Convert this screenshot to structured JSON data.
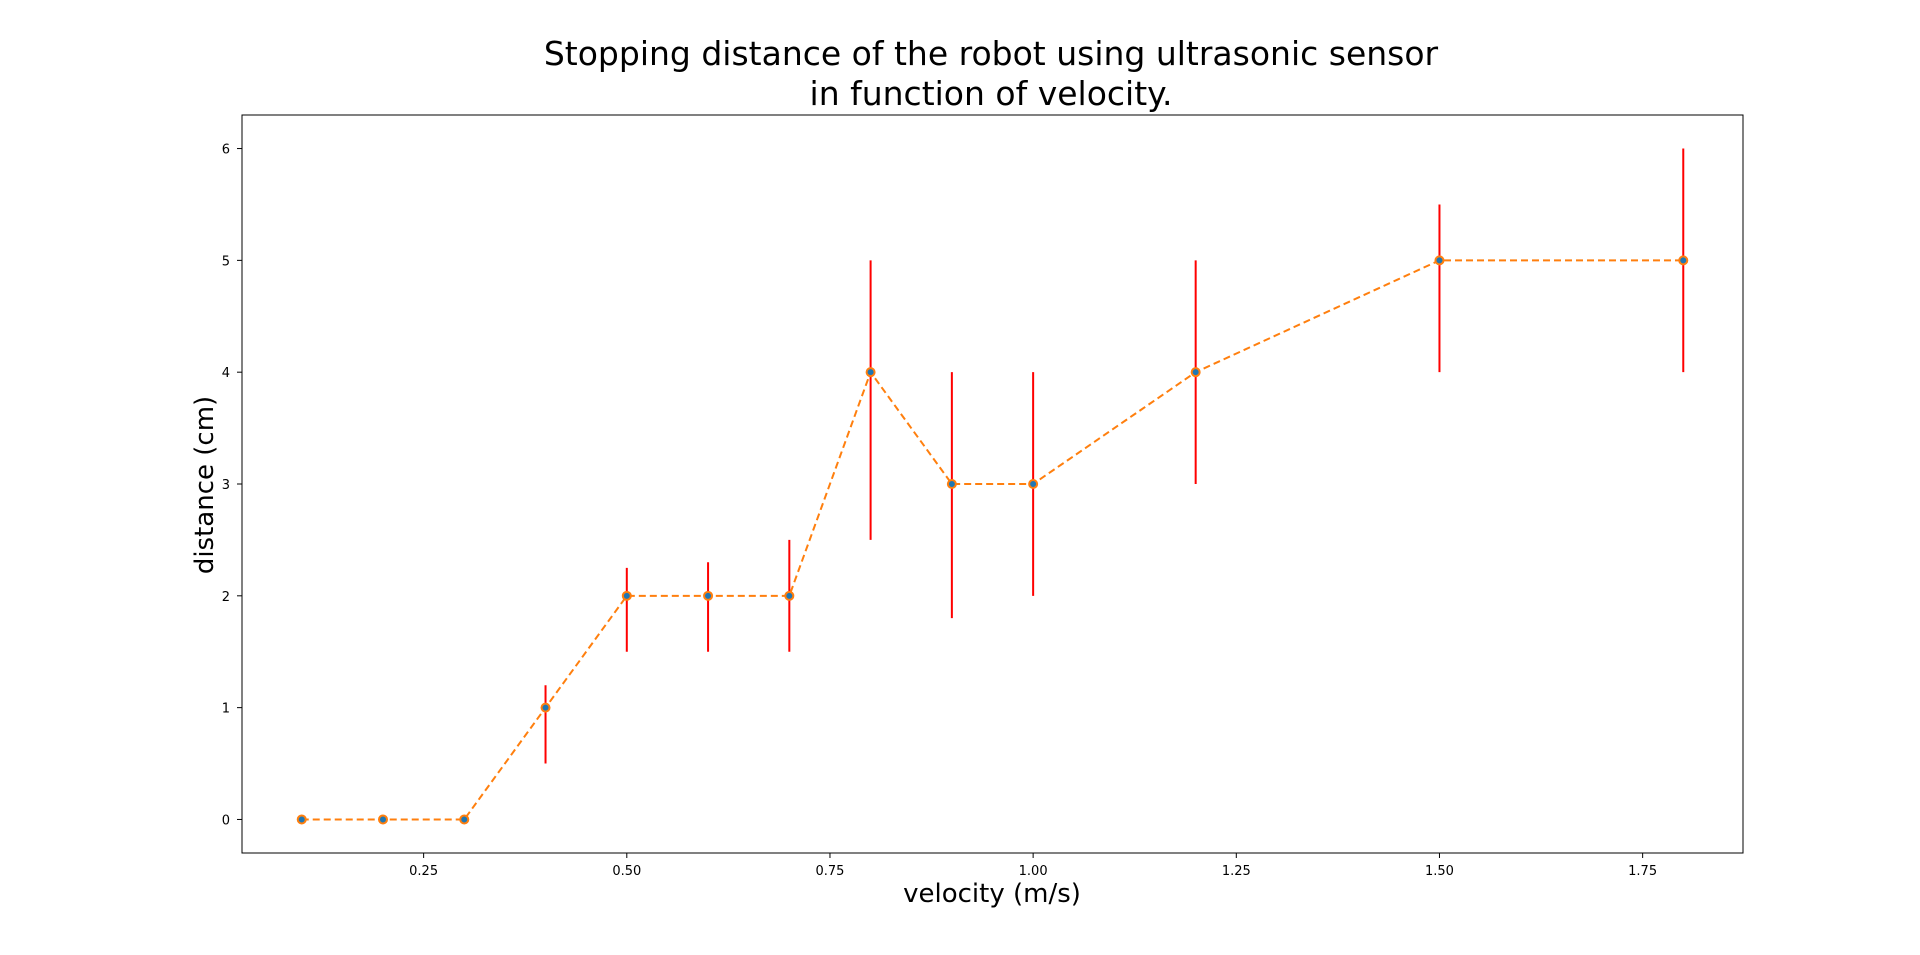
{
  "chart_data": {
    "type": "line",
    "title_lines": [
      "Stopping distance of the robot using ultrasonic sensor",
      "in function of velocity."
    ],
    "xlabel": "velocity (m/s)",
    "ylabel": "distance (cm)",
    "xlim": [
      0.0265,
      1.8735
    ],
    "ylim": [
      -0.3,
      6.3
    ],
    "xticks": [
      0.25,
      0.5,
      0.75,
      1.0,
      1.25,
      1.5,
      1.75
    ],
    "xtick_labels": [
      "0.25",
      "0.50",
      "0.75",
      "1.00",
      "1.25",
      "1.50",
      "1.75"
    ],
    "yticks": [
      0,
      1,
      2,
      3,
      4,
      5,
      6
    ],
    "ytick_labels": [
      "0",
      "1",
      "2",
      "3",
      "4",
      "5",
      "6"
    ],
    "grid": false,
    "series": [
      {
        "x": [
          0.1,
          0.2,
          0.3,
          0.4,
          0.5,
          0.6,
          0.7,
          0.8,
          0.9,
          1.0,
          1.2,
          1.5,
          1.8
        ],
        "y": [
          0,
          0,
          0,
          1,
          2,
          2,
          2,
          4,
          3,
          3,
          4,
          5,
          5
        ],
        "error_low": [
          0,
          0,
          0,
          0.5,
          1.5,
          1.5,
          1.5,
          2.5,
          1.8,
          2.0,
          3.0,
          4.0,
          4.0
        ],
        "error_high": [
          0,
          0,
          0,
          1.2,
          2.25,
          2.3,
          2.5,
          5.0,
          4.0,
          4.0,
          5.0,
          5.5,
          6.0
        ],
        "line_style": "dashed",
        "line_color": "#ff7f0e",
        "marker_color": "#1f77b4",
        "marker_edge_color": "#ff7f0e",
        "errorbar_color": "#ff0000"
      }
    ]
  }
}
